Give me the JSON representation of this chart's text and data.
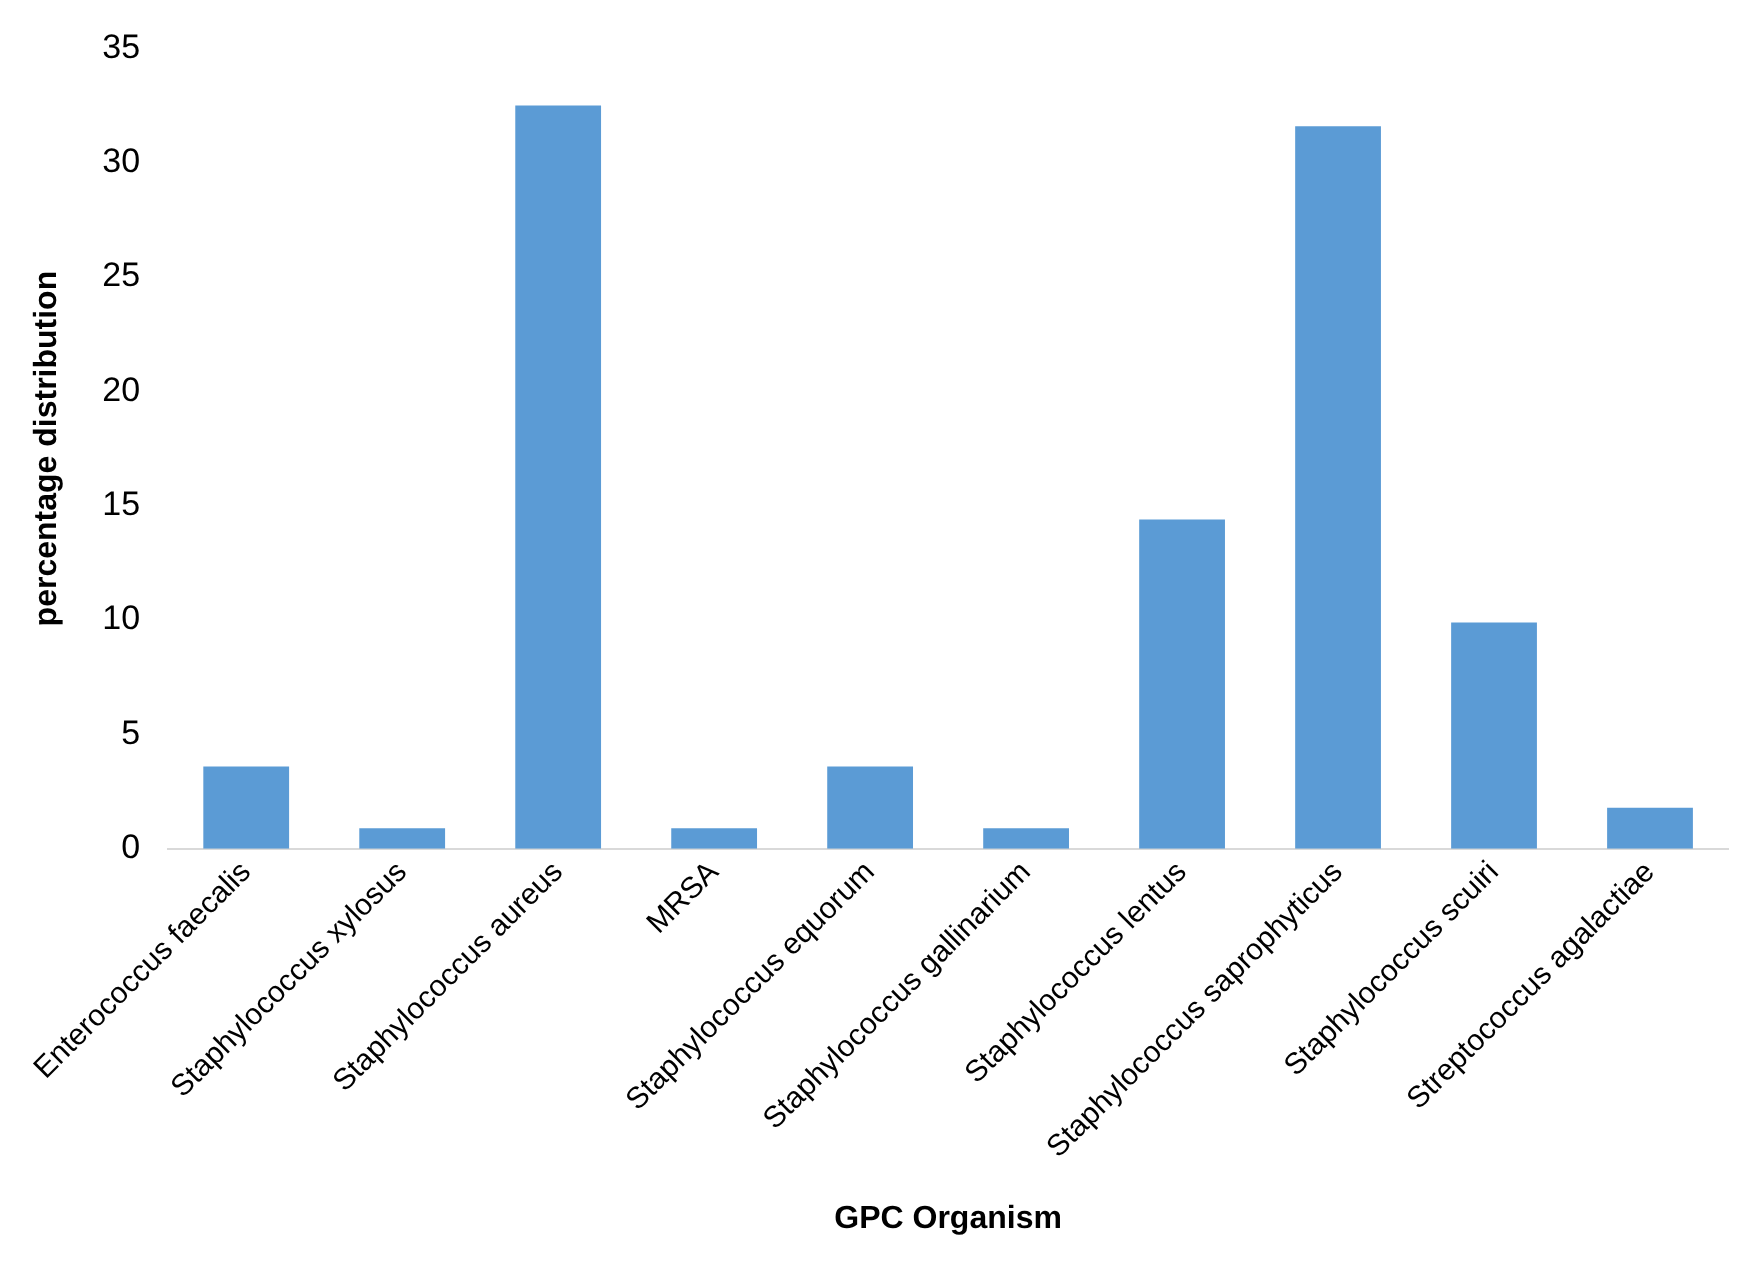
{
  "chart_data": {
    "type": "bar",
    "xlabel": "GPC Organism",
    "ylabel": "percentage distribution",
    "categories": [
      "Enterococcus faecalis",
      "Staphylococcus xylosus",
      "Staphylococcus aureus",
      "MRSA",
      "Staphylococcus equorum",
      "Staphylococcus gallinarium",
      "Staphylococcus lentus",
      "Staphylococcus saprophyticus",
      "Staphylococcus scuiri",
      "Streptococcus agalactiae"
    ],
    "values": [
      3.6,
      0.9,
      32.5,
      0.9,
      3.6,
      0.9,
      14.4,
      31.6,
      9.9,
      1.8
    ],
    "color": "#5b9bd5",
    "ylim": [
      0,
      35
    ],
    "yticks": [
      0,
      5,
      10,
      15,
      20,
      25,
      30,
      35
    ],
    "grid": false,
    "legend": false
  }
}
